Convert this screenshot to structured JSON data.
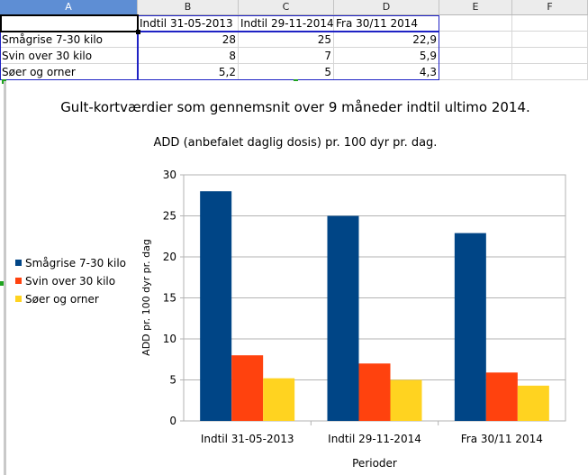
{
  "sheet": {
    "columns": [
      "A",
      "B",
      "C",
      "D",
      "E",
      "F"
    ],
    "header_row": [
      "",
      "Indtil 31-05-2013",
      "Indtil 29-11-2014",
      "Fra 30/11 2014"
    ],
    "rows": [
      {
        "label": "Smågrise 7-30 kilo",
        "values": [
          "28",
          "25",
          "22,9"
        ]
      },
      {
        "label": "Svin over 30 kilo",
        "values": [
          "8",
          "7",
          "5,9"
        ]
      },
      {
        "label": "Søer og orner",
        "values": [
          "5,2",
          "5",
          "4,3"
        ]
      }
    ]
  },
  "colors": {
    "series": [
      "#004586",
      "#ff420e",
      "#ffd320"
    ],
    "grid": "#b3b3b3",
    "active_column": "#5e8ed4",
    "range_border": "#1f22c4"
  },
  "chart_data": {
    "type": "bar",
    "title": "Gult-kortværdier som gennemsnit over 9 måneder indtil ultimo 2014.",
    "subtitle": "ADD (anbefalet daglig dosis) pr. 100 dyr pr. dag.",
    "xlabel": "Perioder",
    "ylabel": "ADD pr. 100 dyr pr. dag",
    "categories": [
      "Indtil 31-05-2013",
      "Indtil 29-11-2014",
      "Fra 30/11 2014"
    ],
    "series": [
      {
        "name": "Smågrise 7-30 kilo",
        "values": [
          28,
          25,
          22.9
        ]
      },
      {
        "name": "Svin over 30 kilo",
        "values": [
          8,
          7,
          5.9
        ]
      },
      {
        "name": "Søer og orner",
        "values": [
          5.2,
          5,
          4.3
        ]
      }
    ],
    "ylim": [
      0,
      30
    ],
    "yticks": [
      0,
      5,
      10,
      15,
      20,
      25,
      30
    ],
    "grid": true,
    "legend": "left"
  }
}
